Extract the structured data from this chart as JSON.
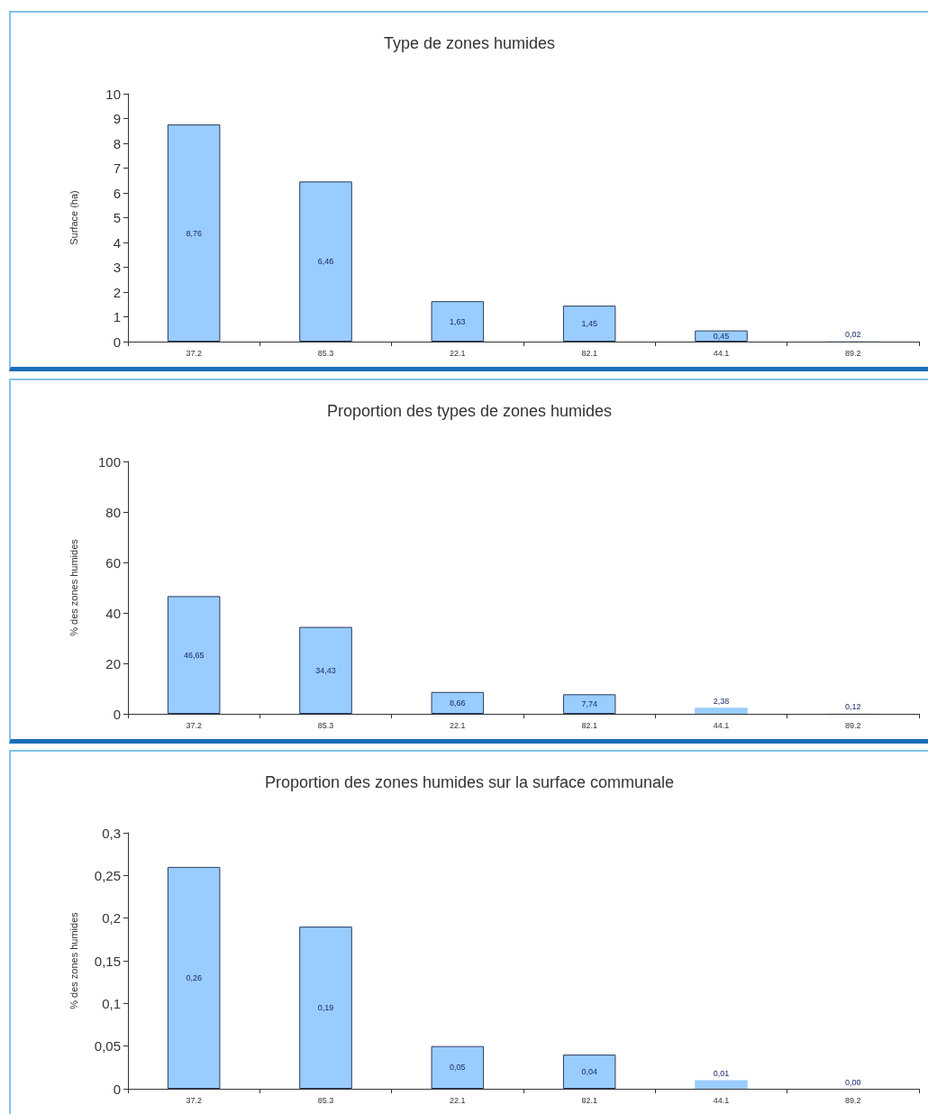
{
  "chart_data": [
    {
      "type": "bar",
      "title": "Type de zones humides",
      "ylabel": "Surface (ha)",
      "categories": [
        "37.2",
        "85.3",
        "22.1",
        "82.1",
        "44.1",
        "89.2"
      ],
      "values": [
        8.76,
        6.46,
        1.63,
        1.45,
        0.45,
        0.02
      ],
      "value_labels": [
        "8,76",
        "6,46",
        "1,63",
        "1,45",
        "0,45",
        "0,02"
      ],
      "color": "#99ccff",
      "ylim": [
        0,
        10
      ],
      "yticks": [
        0,
        1,
        2,
        3,
        4,
        5,
        6,
        7,
        8,
        9,
        10
      ],
      "grid": false
    },
    {
      "type": "bar",
      "title": "Proportion des types de zones humides",
      "ylabel": "% des zones humides",
      "categories": [
        "37.2",
        "85.3",
        "22.1",
        "82.1",
        "44.1",
        "89.2"
      ],
      "values": [
        46.65,
        34.43,
        8.66,
        7.74,
        2.38,
        0.12
      ],
      "value_labels": [
        "46,65",
        "34,43",
        "8,66",
        "7,74",
        "2,38",
        "0,12"
      ],
      "color": "#99ccff",
      "ylim": [
        0,
        100
      ],
      "yticks": [
        0,
        20,
        40,
        60,
        80,
        100
      ],
      "grid": false
    },
    {
      "type": "bar",
      "title": "Proportion des zones humides sur la surface communale",
      "ylabel": "% des zones humides",
      "categories": [
        "37.2",
        "85.3",
        "22.1",
        "82.1",
        "44.1",
        "89.2"
      ],
      "values": [
        0.26,
        0.19,
        0.05,
        0.04,
        0.01,
        0.0
      ],
      "value_labels": [
        "0,26",
        "0,19",
        "0,05",
        "0,04",
        "0,01",
        "0,00"
      ],
      "color": "#99ccff",
      "ylim": [
        0,
        0.3
      ],
      "yticks": [
        0,
        {
          "value": 0.05,
          "label": "0,05"
        },
        {
          "value": 0.1,
          "label": "0,1"
        },
        {
          "value": 0.15,
          "label": "0,15"
        },
        {
          "value": 0.2,
          "label": "0,2"
        },
        {
          "value": 0.25,
          "label": "0,25"
        },
        {
          "value": 0.3,
          "label": "0,3"
        }
      ],
      "grid": false
    }
  ]
}
